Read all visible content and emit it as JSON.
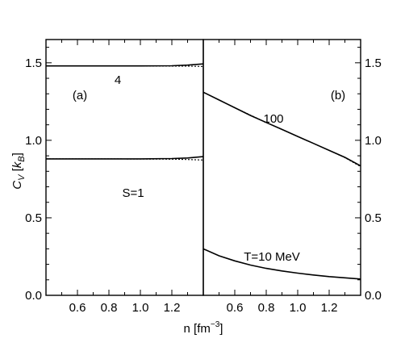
{
  "chart_data": [
    {
      "panel_label": "(a)",
      "type": "line",
      "xlim": [
        0.4,
        1.4
      ],
      "ylim": [
        0.0,
        1.65
      ],
      "xticks": [
        "0.6",
        "0.8",
        "1.0",
        "1.2"
      ],
      "yticks": [
        "0.0",
        "0.5",
        "1.0",
        "1.5"
      ],
      "annotations": [
        "4",
        "S=1"
      ],
      "series": [
        {
          "style": "solid",
          "x": [
            0.4,
            0.6,
            0.8,
            1.0,
            1.2,
            1.3,
            1.4
          ],
          "y": [
            1.48,
            1.48,
            1.48,
            1.48,
            1.481,
            1.485,
            1.493
          ]
        },
        {
          "style": "dotted",
          "x": [
            0.4,
            0.6,
            0.8,
            1.0,
            1.2,
            1.3,
            1.4
          ],
          "y": [
            1.48,
            1.48,
            1.48,
            1.48,
            1.479,
            1.478,
            1.476
          ]
        },
        {
          "style": "solid",
          "x": [
            0.4,
            0.6,
            0.8,
            1.0,
            1.2,
            1.3,
            1.4
          ],
          "y": [
            0.88,
            0.88,
            0.88,
            0.88,
            0.882,
            0.886,
            0.895
          ]
        },
        {
          "style": "dotted",
          "x": [
            0.4,
            0.6,
            0.8,
            1.0,
            1.2,
            1.3,
            1.4
          ],
          "y": [
            0.88,
            0.88,
            0.88,
            0.879,
            0.878,
            0.876,
            0.873
          ]
        }
      ]
    },
    {
      "panel_label": "(b)",
      "type": "line",
      "xlim": [
        0.4,
        1.4
      ],
      "ylim": [
        0.0,
        1.65
      ],
      "xticks": [
        "0.6",
        "0.8",
        "1.0",
        "1.2"
      ],
      "yticks": [
        "0.0",
        "0.5",
        "1.0",
        "1.5"
      ],
      "annotations": [
        "100",
        "T=10 MeV"
      ],
      "series": [
        {
          "style": "solid",
          "x": [
            0.4,
            0.5,
            0.6,
            0.7,
            0.8,
            0.9,
            1.0,
            1.1,
            1.2,
            1.3,
            1.4
          ],
          "y": [
            1.31,
            1.26,
            1.21,
            1.16,
            1.115,
            1.07,
            1.025,
            0.98,
            0.935,
            0.89,
            0.835
          ]
        },
        {
          "style": "dotted",
          "x": [
            0.4,
            0.6,
            0.8,
            1.0,
            1.2,
            1.3,
            1.4
          ],
          "y": [
            1.31,
            1.21,
            1.115,
            1.025,
            0.935,
            0.888,
            0.83
          ]
        },
        {
          "style": "solid",
          "x": [
            0.4,
            0.5,
            0.6,
            0.7,
            0.8,
            0.9,
            1.0,
            1.1,
            1.2,
            1.3,
            1.4
          ],
          "y": [
            0.3,
            0.255,
            0.222,
            0.195,
            0.174,
            0.157,
            0.143,
            0.131,
            0.121,
            0.113,
            0.105
          ]
        }
      ]
    }
  ],
  "ylabel": "C_V [k_B]",
  "xlabel": "n [fm^-3]"
}
